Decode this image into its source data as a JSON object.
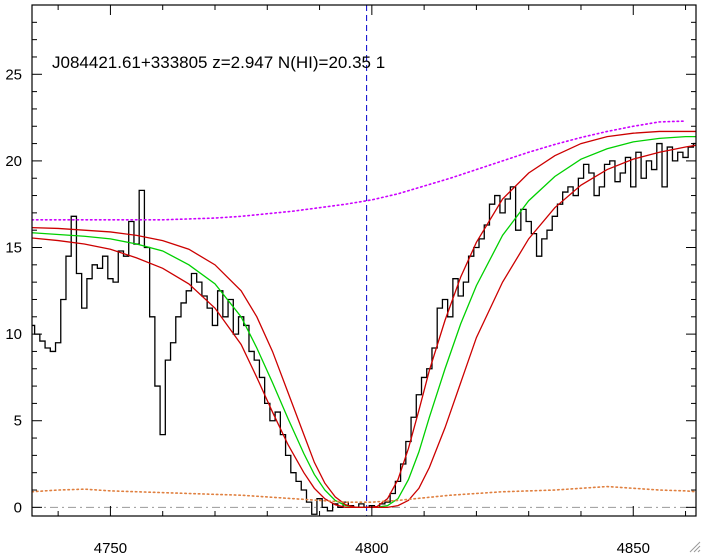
{
  "chart_data": {
    "type": "line",
    "title": "J084421.61+333805 z=2.947 N(HI)=20.35 1",
    "xlabel": "",
    "ylabel": "",
    "xlim": [
      4735,
      4862
    ],
    "ylim": [
      -0.5,
      29
    ],
    "x_ticks": [
      4750,
      4800,
      4850
    ],
    "y_ticks": [
      0,
      5,
      10,
      15,
      20,
      25
    ],
    "grid": false,
    "marker_line_x": 4799,
    "zero_line_y": 0,
    "colors": {
      "spectrum": "#000000",
      "fit": "#00d000",
      "fit_bounds": "#cc0000",
      "continuum": "#cc00ff",
      "error": "#e08040",
      "marker": "#0000cc",
      "zero": "#999999"
    },
    "series": [
      {
        "style": "steps",
        "color": "#000000",
        "x": [
          4735,
          4736,
          4737,
          4738,
          4739,
          4740,
          4741,
          4742,
          4743,
          4744,
          4745,
          4746,
          4747,
          4748,
          4749,
          4750,
          4751,
          4752,
          4753,
          4754,
          4755,
          4756,
          4757,
          4758,
          4759,
          4760,
          4761,
          4762,
          4763,
          4764,
          4765,
          4766,
          4767,
          4768,
          4769,
          4770,
          4771,
          4772,
          4773,
          4774,
          4775,
          4776,
          4777,
          4778,
          4779,
          4780,
          4781,
          4782,
          4783,
          4784,
          4785,
          4786,
          4787,
          4788,
          4789,
          4790,
          4791,
          4792,
          4793,
          4794,
          4795,
          4796,
          4797,
          4798,
          4799,
          4800,
          4801,
          4802,
          4803,
          4804,
          4805,
          4806,
          4807,
          4808,
          4809,
          4810,
          4811,
          4812,
          4813,
          4814,
          4815,
          4816,
          4817,
          4818,
          4819,
          4820,
          4821,
          4822,
          4823,
          4824,
          4825,
          4826,
          4827,
          4828,
          4829,
          4830,
          4831,
          4832,
          4833,
          4834,
          4835,
          4836,
          4837,
          4838,
          4839,
          4840,
          4841,
          4842,
          4843,
          4844,
          4845,
          4846,
          4847,
          4848,
          4849,
          4850,
          4851,
          4852,
          4853,
          4854,
          4855,
          4856,
          4857,
          4858,
          4859,
          4860,
          4861,
          4862
        ],
        "y": [
          10.5,
          10.0,
          9.6,
          9.2,
          9.0,
          9.5,
          12.0,
          14.5,
          16.8,
          13.5,
          11.5,
          13.2,
          14.0,
          13.8,
          14.5,
          13.2,
          13.0,
          14.8,
          14.5,
          16.5,
          15.2,
          18.3,
          15.0,
          11.0,
          7.0,
          4.2,
          8.5,
          9.5,
          11.0,
          11.8,
          12.5,
          13.5,
          13.0,
          12.2,
          11.5,
          10.5,
          12.5,
          11.0,
          12.0,
          10.0,
          11.0,
          10.5,
          9.0,
          8.5,
          7.5,
          6.0,
          5.0,
          5.5,
          4.2,
          3.0,
          2.0,
          1.5,
          1.0,
          0.3,
          -0.4,
          0.5,
          0.0,
          -0.2,
          0.2,
          0.0,
          0.3,
          0.1,
          0.0,
          0.2,
          0.0,
          0.1,
          0.0,
          0.2,
          0.3,
          0.8,
          1.5,
          2.5,
          3.8,
          5.2,
          6.5,
          7.5,
          8.0,
          9.2,
          11.5,
          12.0,
          11.0,
          13.2,
          12.2,
          13.0,
          14.5,
          15.0,
          15.5,
          16.3,
          17.5,
          18.0,
          17.0,
          17.8,
          18.5,
          16.0,
          17.2,
          16.5,
          15.8,
          14.5,
          15.5,
          16.0,
          16.8,
          17.5,
          18.2,
          18.5,
          18.0,
          19.0,
          19.8,
          19.3,
          18.0,
          18.5,
          19.8,
          20.0,
          18.8,
          19.3,
          20.2,
          18.5,
          20.5,
          19.0,
          20.0,
          19.5,
          21.0,
          18.5,
          20.8,
          20.0,
          20.5,
          20.2,
          20.8,
          21.0
        ]
      },
      {
        "style": "line",
        "color": "#00d000",
        "x": [
          4735,
          4740,
          4745,
          4750,
          4755,
          4760,
          4765,
          4770,
          4775,
          4778,
          4781,
          4784,
          4787,
          4789,
          4791,
          4793,
          4795,
          4797,
          4799,
          4801,
          4803,
          4805,
          4807,
          4809,
          4811,
          4814,
          4817,
          4820,
          4825,
          4830,
          4835,
          4840,
          4845,
          4850,
          4855,
          4860,
          4862
        ],
        "y": [
          15.85,
          15.75,
          15.65,
          15.5,
          15.2,
          14.8,
          14.0,
          12.9,
          11.0,
          9.2,
          7.2,
          5.1,
          3.1,
          1.9,
          1.0,
          0.4,
          0.1,
          0.0,
          0.0,
          0.0,
          0.1,
          0.5,
          1.6,
          3.2,
          5.2,
          8.0,
          10.6,
          12.8,
          15.7,
          17.7,
          19.1,
          20.1,
          20.7,
          21.1,
          21.3,
          21.4,
          21.4
        ]
      },
      {
        "style": "line",
        "color": "#cc0000",
        "x": [
          4735,
          4740,
          4745,
          4750,
          4755,
          4760,
          4765,
          4770,
          4775,
          4778,
          4781,
          4784,
          4787,
          4789,
          4791,
          4793,
          4795,
          4797,
          4799,
          4801,
          4803,
          4805,
          4807,
          4809,
          4811,
          4814,
          4817,
          4820,
          4825,
          4830,
          4835,
          4840,
          4845,
          4850,
          4855,
          4860,
          4862
        ],
        "y": [
          16.15,
          16.1,
          16.0,
          15.9,
          15.7,
          15.4,
          14.9,
          14.0,
          12.5,
          11.0,
          9.0,
          6.6,
          4.2,
          2.6,
          1.4,
          0.6,
          0.15,
          0.0,
          0.0,
          0.05,
          0.5,
          1.6,
          3.4,
          5.6,
          7.9,
          10.8,
          13.3,
          15.3,
          17.8,
          19.3,
          20.3,
          21.0,
          21.4,
          21.6,
          21.7,
          21.7,
          21.7
        ]
      },
      {
        "style": "line",
        "color": "#cc0000",
        "x": [
          4735,
          4740,
          4745,
          4750,
          4755,
          4760,
          4765,
          4770,
          4775,
          4778,
          4781,
          4784,
          4787,
          4789,
          4791,
          4793,
          4795,
          4797,
          4799,
          4801,
          4803,
          4805,
          4807,
          4809,
          4811,
          4814,
          4817,
          4820,
          4825,
          4830,
          4835,
          4840,
          4845,
          4850,
          4855,
          4860,
          4862
        ],
        "y": [
          15.55,
          15.4,
          15.2,
          14.9,
          14.4,
          13.8,
          12.9,
          11.5,
          9.4,
          7.5,
          5.5,
          3.6,
          2.0,
          1.1,
          0.5,
          0.15,
          0.0,
          0.0,
          0.0,
          0.0,
          0.0,
          0.1,
          0.4,
          1.1,
          2.3,
          4.6,
          7.2,
          9.8,
          13.0,
          15.5,
          17.3,
          18.6,
          19.5,
          20.1,
          20.5,
          20.8,
          20.9
        ]
      },
      {
        "style": "dotted",
        "color": "#cc00ff",
        "x": [
          4735,
          4740,
          4745,
          4750,
          4755,
          4760,
          4765,
          4770,
          4775,
          4780,
          4785,
          4790,
          4795,
          4800,
          4805,
          4810,
          4815,
          4820,
          4825,
          4830,
          4835,
          4840,
          4845,
          4850,
          4855,
          4860
        ],
        "y": [
          16.6,
          16.6,
          16.6,
          16.6,
          16.6,
          16.6,
          16.65,
          16.7,
          16.8,
          16.95,
          17.1,
          17.3,
          17.5,
          17.75,
          18.1,
          18.55,
          19.0,
          19.5,
          20.0,
          20.5,
          20.95,
          21.35,
          21.7,
          22.0,
          22.25,
          22.3
        ]
      },
      {
        "style": "dotted",
        "color": "#e08040",
        "x": [
          4735,
          4740,
          4745,
          4750,
          4755,
          4760,
          4765,
          4770,
          4775,
          4780,
          4785,
          4790,
          4795,
          4800,
          4805,
          4810,
          4815,
          4820,
          4825,
          4830,
          4835,
          4840,
          4845,
          4850,
          4855,
          4860,
          4862
        ],
        "y": [
          0.9,
          1.0,
          1.05,
          0.95,
          0.9,
          0.85,
          0.8,
          0.75,
          0.7,
          0.6,
          0.5,
          0.4,
          0.3,
          0.3,
          0.4,
          0.55,
          0.7,
          0.8,
          0.9,
          0.95,
          1.0,
          1.1,
          1.2,
          1.1,
          1.0,
          0.95,
          0.9
        ]
      }
    ]
  }
}
